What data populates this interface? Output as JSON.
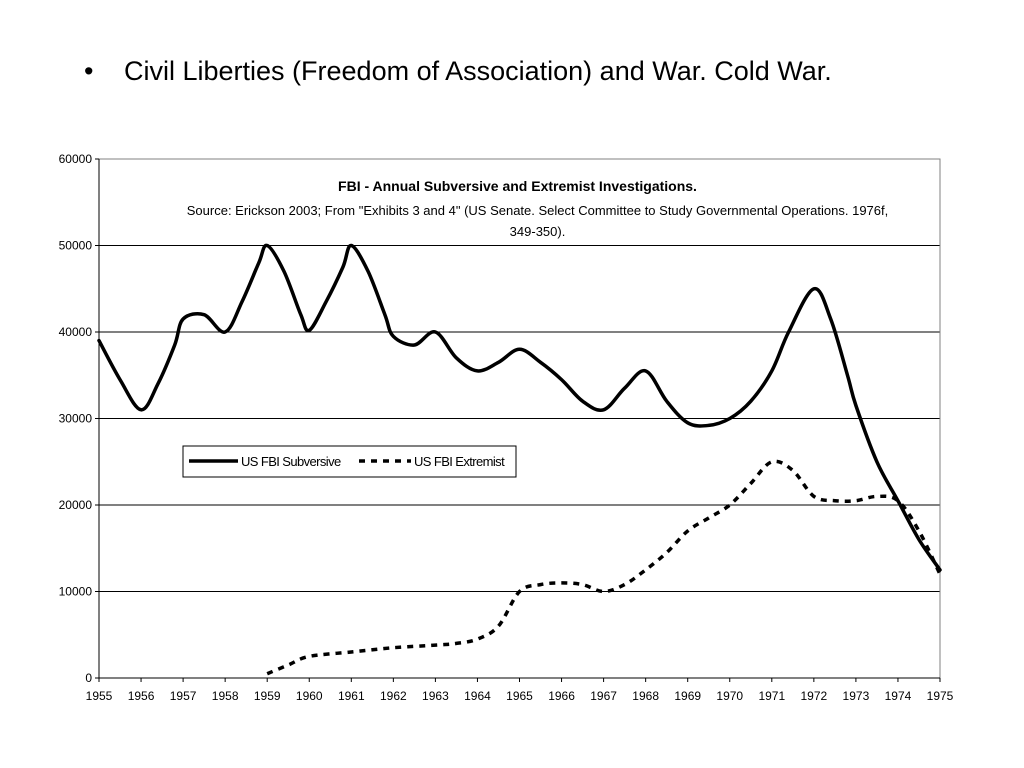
{
  "slide": {
    "bullet_symbol": "•",
    "bullet_text": "Civil Liberties (Freedom of Association) and War. Cold War."
  },
  "chart_data": {
    "type": "line",
    "title": "FBI - Annual Subversive and Extremist Investigations.",
    "subtitle_line1": "Source: Erickson 2003; From \"Exhibits 3 and 4\" (US Senate. Select Committee to Study Governmental Operations. 1976f,",
    "subtitle_line2": "349-350).",
    "xlabel": "",
    "ylabel": "",
    "xlim": [
      1955,
      1975
    ],
    "ylim": [
      0,
      60000
    ],
    "x_ticks": [
      "1955",
      "1956",
      "1957",
      "1958",
      "1959",
      "1960",
      "1961",
      "1962",
      "1963",
      "1964",
      "1965",
      "1966",
      "1967",
      "1968",
      "1969",
      "1970",
      "1971",
      "1972",
      "1973",
      "1974",
      "1975"
    ],
    "y_ticks": [
      "0",
      "10000",
      "20000",
      "30000",
      "40000",
      "50000",
      "60000"
    ],
    "grid": "horizontal",
    "legend_position": "middle-left",
    "series": [
      {
        "name": "US FBI Subversive",
        "style": "solid",
        "color": "#000000",
        "x": [
          1955,
          1955.5,
          1956,
          1956.4,
          1956.8,
          1957,
          1957.5,
          1958,
          1958.4,
          1958.8,
          1959,
          1959.4,
          1959.8,
          1960,
          1960.4,
          1960.8,
          1961,
          1961.4,
          1961.8,
          1962,
          1962.5,
          1963,
          1963.5,
          1964,
          1964.5,
          1965,
          1965.5,
          1966,
          1966.5,
          1967,
          1967.5,
          1968,
          1968.5,
          1969,
          1969.5,
          1970,
          1970.5,
          1971,
          1971.4,
          1972,
          1972.4,
          1972.8,
          1973,
          1973.5,
          1974,
          1974.5,
          1975
        ],
        "values": [
          39000,
          34500,
          31000,
          34000,
          38500,
          41500,
          42000,
          40000,
          43500,
          48000,
          50000,
          47000,
          42000,
          40200,
          43500,
          47500,
          50000,
          47000,
          42000,
          39500,
          38500,
          40000,
          37000,
          35500,
          36500,
          38000,
          36500,
          34500,
          32000,
          31000,
          33500,
          35500,
          32000,
          29500,
          29200,
          30000,
          32000,
          35500,
          40000,
          45000,
          41500,
          35000,
          31500,
          25000,
          20500,
          16000,
          12500
        ]
      },
      {
        "name": "US FBI Extremist",
        "style": "dashed",
        "color": "#000000",
        "x": [
          1959,
          1959.5,
          1960,
          1961,
          1962,
          1963,
          1963.5,
          1964,
          1964.5,
          1965,
          1965.5,
          1966,
          1966.5,
          1967,
          1967.5,
          1968,
          1968.5,
          1969,
          1969.5,
          1970,
          1970.5,
          1971,
          1971.5,
          1972,
          1972.5,
          1973,
          1973.5,
          1974,
          1974.5,
          1975
        ],
        "values": [
          500,
          1500,
          2500,
          3000,
          3500,
          3800,
          4000,
          4500,
          6000,
          10000,
          10800,
          11000,
          10800,
          10000,
          10800,
          12500,
          14500,
          17000,
          18500,
          20000,
          22500,
          25000,
          24000,
          21000,
          20500,
          20500,
          21000,
          20500,
          17000,
          12000
        ]
      }
    ]
  }
}
